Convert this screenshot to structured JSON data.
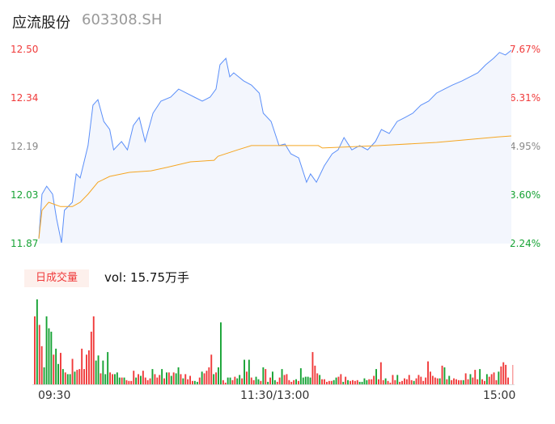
{
  "header": {
    "name": "应流股份",
    "code": "603308.SH"
  },
  "chart_data": [
    {
      "type": "line",
      "title": "应流股份 603308.SH intraday",
      "ylim": [
        11.87,
        12.5
      ],
      "y_ticks_left": [
        "12.50",
        "12.34",
        "12.19",
        "12.03",
        "11.87"
      ],
      "y_ticks_right": [
        "7.67%",
        "6.31%",
        "4.95%",
        "3.60%",
        "2.24%"
      ],
      "x_ticks": [
        "09:30",
        "11:30/13:00",
        "15:00"
      ],
      "xlim": [
        0,
        240
      ],
      "series": [
        {
          "name": "price",
          "color": "#5b8ff9",
          "points": [
            [
              0,
              11.886
            ],
            [
              1.6,
              12.03
            ],
            [
              4,
              12.056
            ],
            [
              7,
              12.03
            ],
            [
              9,
              11.951
            ],
            [
              11.5,
              11.873
            ],
            [
              13,
              11.978
            ],
            [
              17,
              12.004
            ],
            [
              19,
              12.096
            ],
            [
              21,
              12.083
            ],
            [
              25,
              12.188
            ],
            [
              27.5,
              12.319
            ],
            [
              30,
              12.337
            ],
            [
              33,
              12.266
            ],
            [
              36,
              12.24
            ],
            [
              38,
              12.174
            ],
            [
              42,
              12.201
            ],
            [
              45,
              12.174
            ],
            [
              48,
              12.253
            ],
            [
              51,
              12.279
            ],
            [
              54,
              12.201
            ],
            [
              58,
              12.293
            ],
            [
              62,
              12.332
            ],
            [
              67,
              12.345
            ],
            [
              71,
              12.371
            ],
            [
              75,
              12.358
            ],
            [
              79,
              12.345
            ],
            [
              83,
              12.332
            ],
            [
              87,
              12.345
            ],
            [
              90,
              12.371
            ],
            [
              92,
              12.45
            ],
            [
              95,
              12.471
            ],
            [
              97,
              12.411
            ],
            [
              99,
              12.424
            ],
            [
              104,
              12.398
            ],
            [
              108,
              12.384
            ],
            [
              112,
              12.358
            ],
            [
              114,
              12.293
            ],
            [
              118,
              12.266
            ],
            [
              122,
              12.188
            ],
            [
              125,
              12.193
            ],
            [
              128,
              12.161
            ],
            [
              132,
              12.148
            ],
            [
              136,
              12.069
            ],
            [
              138,
              12.096
            ],
            [
              141,
              12.069
            ],
            [
              145,
              12.122
            ],
            [
              149,
              12.161
            ],
            [
              152,
              12.174
            ],
            [
              155,
              12.214
            ],
            [
              159,
              12.174
            ],
            [
              163,
              12.188
            ],
            [
              167,
              12.174
            ],
            [
              171,
              12.201
            ],
            [
              174,
              12.24
            ],
            [
              178,
              12.227
            ],
            [
              182,
              12.266
            ],
            [
              186,
              12.279
            ],
            [
              190,
              12.293
            ],
            [
              194,
              12.319
            ],
            [
              198,
              12.332
            ],
            [
              202,
              12.358
            ],
            [
              206,
              12.371
            ],
            [
              210,
              12.384
            ],
            [
              215,
              12.398
            ],
            [
              219,
              12.411
            ],
            [
              223,
              12.424
            ],
            [
              227,
              12.45
            ],
            [
              231,
              12.471
            ],
            [
              234,
              12.49
            ],
            [
              237,
              12.482
            ],
            [
              240,
              12.497
            ]
          ]
        },
        {
          "name": "average",
          "color": "#f5a623",
          "points": [
            [
              0,
              11.886
            ],
            [
              1.6,
              11.978
            ],
            [
              5,
              12.004
            ],
            [
              11,
              11.99
            ],
            [
              17,
              11.99
            ],
            [
              21,
              12.004
            ],
            [
              25,
              12.03
            ],
            [
              30,
              12.069
            ],
            [
              36,
              12.088
            ],
            [
              46,
              12.101
            ],
            [
              57,
              12.106
            ],
            [
              65,
              12.117
            ],
            [
              77,
              12.135
            ],
            [
              89,
              12.14
            ],
            [
              91,
              12.153
            ],
            [
              101,
              12.174
            ],
            [
              108,
              12.188
            ],
            [
              142,
              12.188
            ],
            [
              144,
              12.18
            ],
            [
              173,
              12.188
            ],
            [
              202,
              12.198
            ],
            [
              221,
              12.209
            ],
            [
              233,
              12.216
            ],
            [
              240,
              12.219
            ]
          ]
        }
      ]
    },
    {
      "type": "bar",
      "title": "日成交量",
      "label": "vol: 15.75万手",
      "up_color": "#f03a3a",
      "down_color": "#17a335",
      "values": [
        80,
        100,
        70,
        45,
        20,
        80,
        66,
        62,
        35,
        42,
        24,
        37,
        18,
        14,
        12,
        12,
        30,
        15,
        17,
        18,
        42,
        18,
        35,
        40,
        62,
        80,
        28,
        34,
        13,
        28,
        12,
        38,
        14,
        12,
        12,
        14,
        8,
        8,
        8,
        5,
        4,
        4,
        16,
        8,
        12,
        10,
        16,
        8,
        5,
        7,
        18,
        12,
        8,
        11,
        18,
        7,
        14,
        14,
        10,
        14,
        13,
        20,
        12,
        7,
        12,
        6,
        10,
        4,
        4,
        3,
        8,
        15,
        13,
        16,
        20,
        35,
        12,
        14,
        20,
        73,
        5,
        2,
        8,
        8,
        5,
        9,
        7,
        11,
        7,
        29,
        15,
        29,
        8,
        5,
        9,
        6,
        4,
        20,
        18,
        3,
        8,
        15,
        5,
        3,
        8,
        18,
        11,
        12,
        5,
        3,
        5,
        6,
        4,
        19,
        8,
        9,
        9,
        8,
        38,
        22,
        13,
        11,
        6,
        6,
        3,
        4,
        4,
        5,
        8,
        9,
        12,
        3,
        9,
        5,
        4,
        5,
        4,
        5,
        3,
        3,
        7,
        5,
        6,
        6,
        10,
        18,
        6,
        26,
        5,
        7,
        4,
        2,
        11,
        5,
        11,
        3,
        4,
        7,
        6,
        11,
        5,
        4,
        7,
        11,
        9,
        4,
        8,
        27,
        15,
        10,
        8,
        7,
        7,
        22,
        20,
        6,
        10,
        5,
        7,
        6,
        5,
        5,
        5,
        13,
        6,
        12,
        8,
        17,
        6,
        18,
        6,
        4,
        12,
        9,
        12,
        14,
        5,
        15,
        21,
        26,
        23,
        8
      ],
      "directions": "rgrrggggrggrgrggrgrrrrrrrrggrgggrrgggrgrrrrgrgrrrrgrrrgrgrgrggrgrrrrggrgrrrrgrggrrggrrggrgrgrrggrgrgrggrrgrrrrrgrgggggrrrgrrrrrggrrgrgrrrrggggrrrgrrrgrrrrgrrrrrrgrrrrrrrrrrgrgrgrrrrrgrrgrrrgrrgrrrrgrrrrgrgrrrrrgrgrg"
    }
  ]
}
